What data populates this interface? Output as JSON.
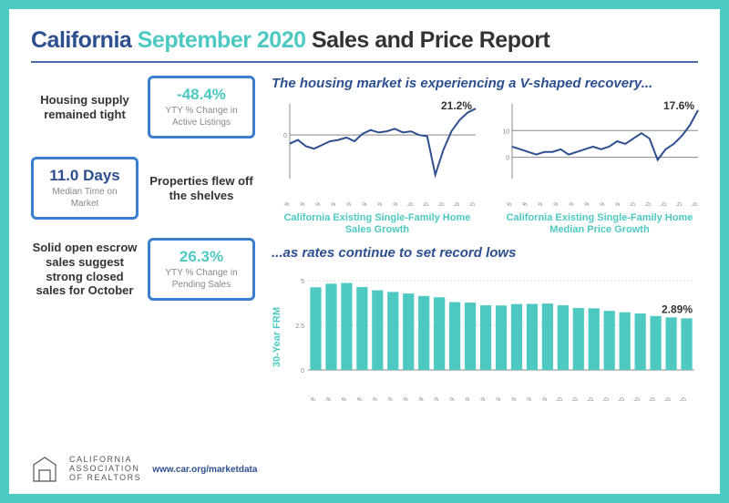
{
  "title": {
    "p1": "California",
    "p2": "September 2020",
    "p3": "Sales and Price Report"
  },
  "left": {
    "r1": {
      "desc": "Housing supply remained tight",
      "val": "-48.4%",
      "val_color": "#4ec9c2",
      "lbl": "YTY % Change in Active Listings"
    },
    "r2": {
      "desc": "Properties flew off the shelves",
      "val": "11.0 Days",
      "val_color": "#2d4f8f",
      "lbl": "Median Time on Market"
    },
    "r3": {
      "desc": "Solid open escrow sales suggest strong closed sales for October",
      "val": "26.3%",
      "val_color": "#4ec9c2",
      "lbl": "YTY % Change in Pending Sales"
    }
  },
  "right": {
    "sub1": "The housing market is experiencing a V-shaped recovery...",
    "sub2": "...as rates continue to set record lows",
    "months": [
      "Sep-18",
      "Nov-18",
      "Jan-19",
      "Mar-19",
      "May-19",
      "Jul-19",
      "Sep-19",
      "Nov-19",
      "Jan-20",
      "Mar-20",
      "May-20",
      "Jul-20",
      "Sep-20"
    ],
    "chart1": {
      "caption": "California Existing Single-Family Home Sales Growth",
      "y_min": -35,
      "y_max": 25,
      "y_ticks": [
        0
      ],
      "end_label": "21.2%",
      "series": [
        -7,
        -4,
        -9,
        -11,
        -8,
        -5,
        -4,
        -2,
        -5,
        1,
        4,
        2,
        3,
        5,
        2,
        3,
        0,
        -1,
        -32,
        -12,
        3,
        12,
        18,
        21.2
      ]
    },
    "chart2": {
      "caption": "California Existing Single-Family Home Median Price Growth",
      "y_min": -8,
      "y_max": 20,
      "y_ticks": [
        0,
        10
      ],
      "end_label": "17.6%",
      "series": [
        4,
        3,
        2,
        1,
        2,
        2,
        3,
        1,
        2,
        3,
        4,
        3,
        4,
        6,
        5,
        7,
        9,
        7,
        -1,
        3,
        5,
        8,
        12,
        17.6
      ]
    },
    "barchart": {
      "ylabel": "30-Year FRM",
      "end_label": "2.89%",
      "y_min": 0,
      "y_max": 5,
      "y_ticks": [
        0,
        2.5,
        5
      ],
      "months": [
        "Sep-18",
        "Oct-18",
        "Nov-18",
        "Dec-18",
        "Jan-19",
        "Feb-19",
        "Mar-19",
        "Apr-19",
        "May-19",
        "Jun-19",
        "Jul-19",
        "Aug-19",
        "Sep-19",
        "Oct-19",
        "Nov-19",
        "Dec-19",
        "Jan-20",
        "Feb-20",
        "Mar-20",
        "Apr-20",
        "May-20",
        "Jun-20",
        "Jul-20",
        "Aug-20",
        "Sep-20"
      ],
      "values": [
        4.63,
        4.83,
        4.87,
        4.64,
        4.46,
        4.37,
        4.28,
        4.14,
        4.07,
        3.8,
        3.77,
        3.62,
        3.61,
        3.69,
        3.7,
        3.72,
        3.62,
        3.47,
        3.45,
        3.31,
        3.23,
        3.16,
        3.02,
        2.94,
        2.89
      ]
    }
  },
  "footer": {
    "org1": "CALIFORNIA",
    "org2": "ASSOCIATION",
    "org3": "OF REALTORS",
    "url": "www.car.org/marketdata"
  }
}
